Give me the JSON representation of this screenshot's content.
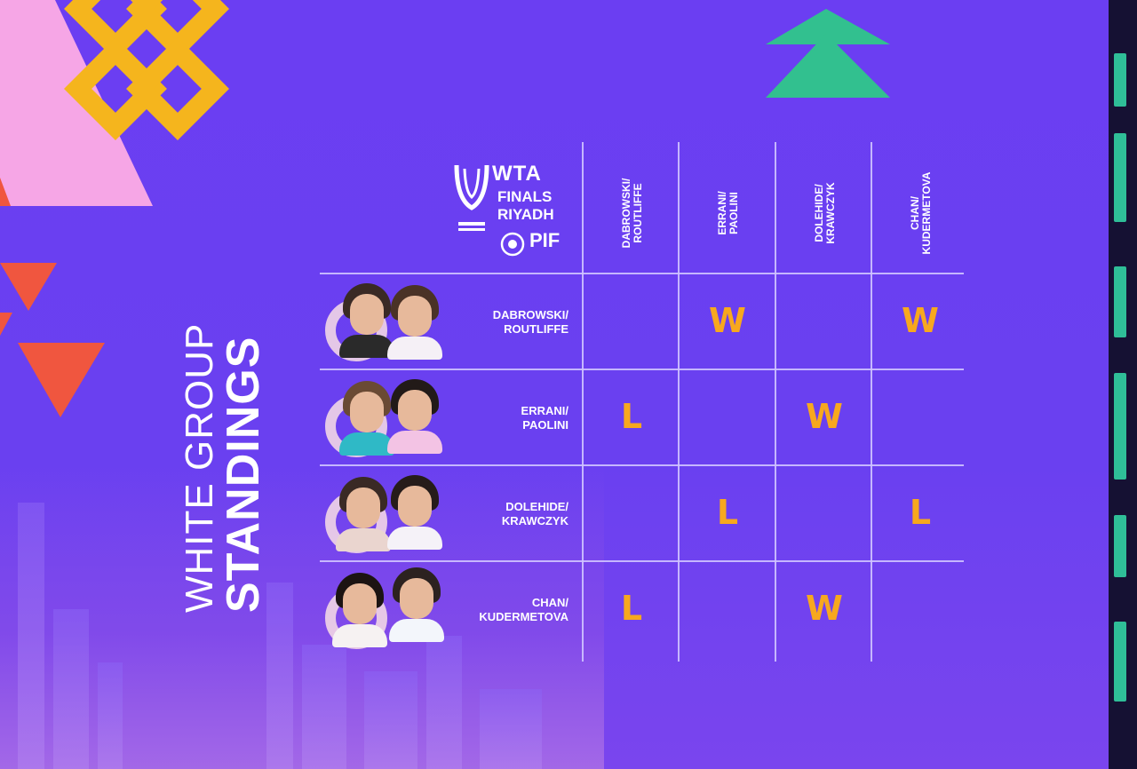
{
  "title": {
    "line1": "WHITE GROUP",
    "line2": "STANDINGS"
  },
  "logo": {
    "brand": "WTA",
    "line1": "FINALS",
    "line2": "RIYADH",
    "sponsor": "PIF",
    "icon": "trophy-icon"
  },
  "columns": [
    "DABROWSKI/\nROUTLIFFE",
    "ERRANI/\nPAOLINI",
    "DOLEHIDE/\nKRAWCZYK",
    "CHAN/\nKUDERMETOVA"
  ],
  "rows": [
    {
      "team": "DABROWSKI/\nROUTLIFFE",
      "results": [
        "",
        "W",
        "",
        "W"
      ]
    },
    {
      "team": "ERRANI/\nPAOLINI",
      "results": [
        "L",
        "",
        "W",
        ""
      ]
    },
    {
      "team": "DOLEHIDE/\nKRAWCZYK",
      "results": [
        "",
        "L",
        "",
        "L"
      ]
    },
    {
      "team": "CHAN/\nKUDERMETOVA",
      "results": [
        "L",
        "",
        "W",
        ""
      ]
    }
  ],
  "colors": {
    "background": "#6a3ff0",
    "result": "#f7a81e",
    "grid": "#cfc3ff",
    "accent_green": "#2fbe98",
    "accent_yellow": "#f5b51d",
    "accent_pink": "#f6a6e6",
    "accent_red": "#f0563f"
  }
}
